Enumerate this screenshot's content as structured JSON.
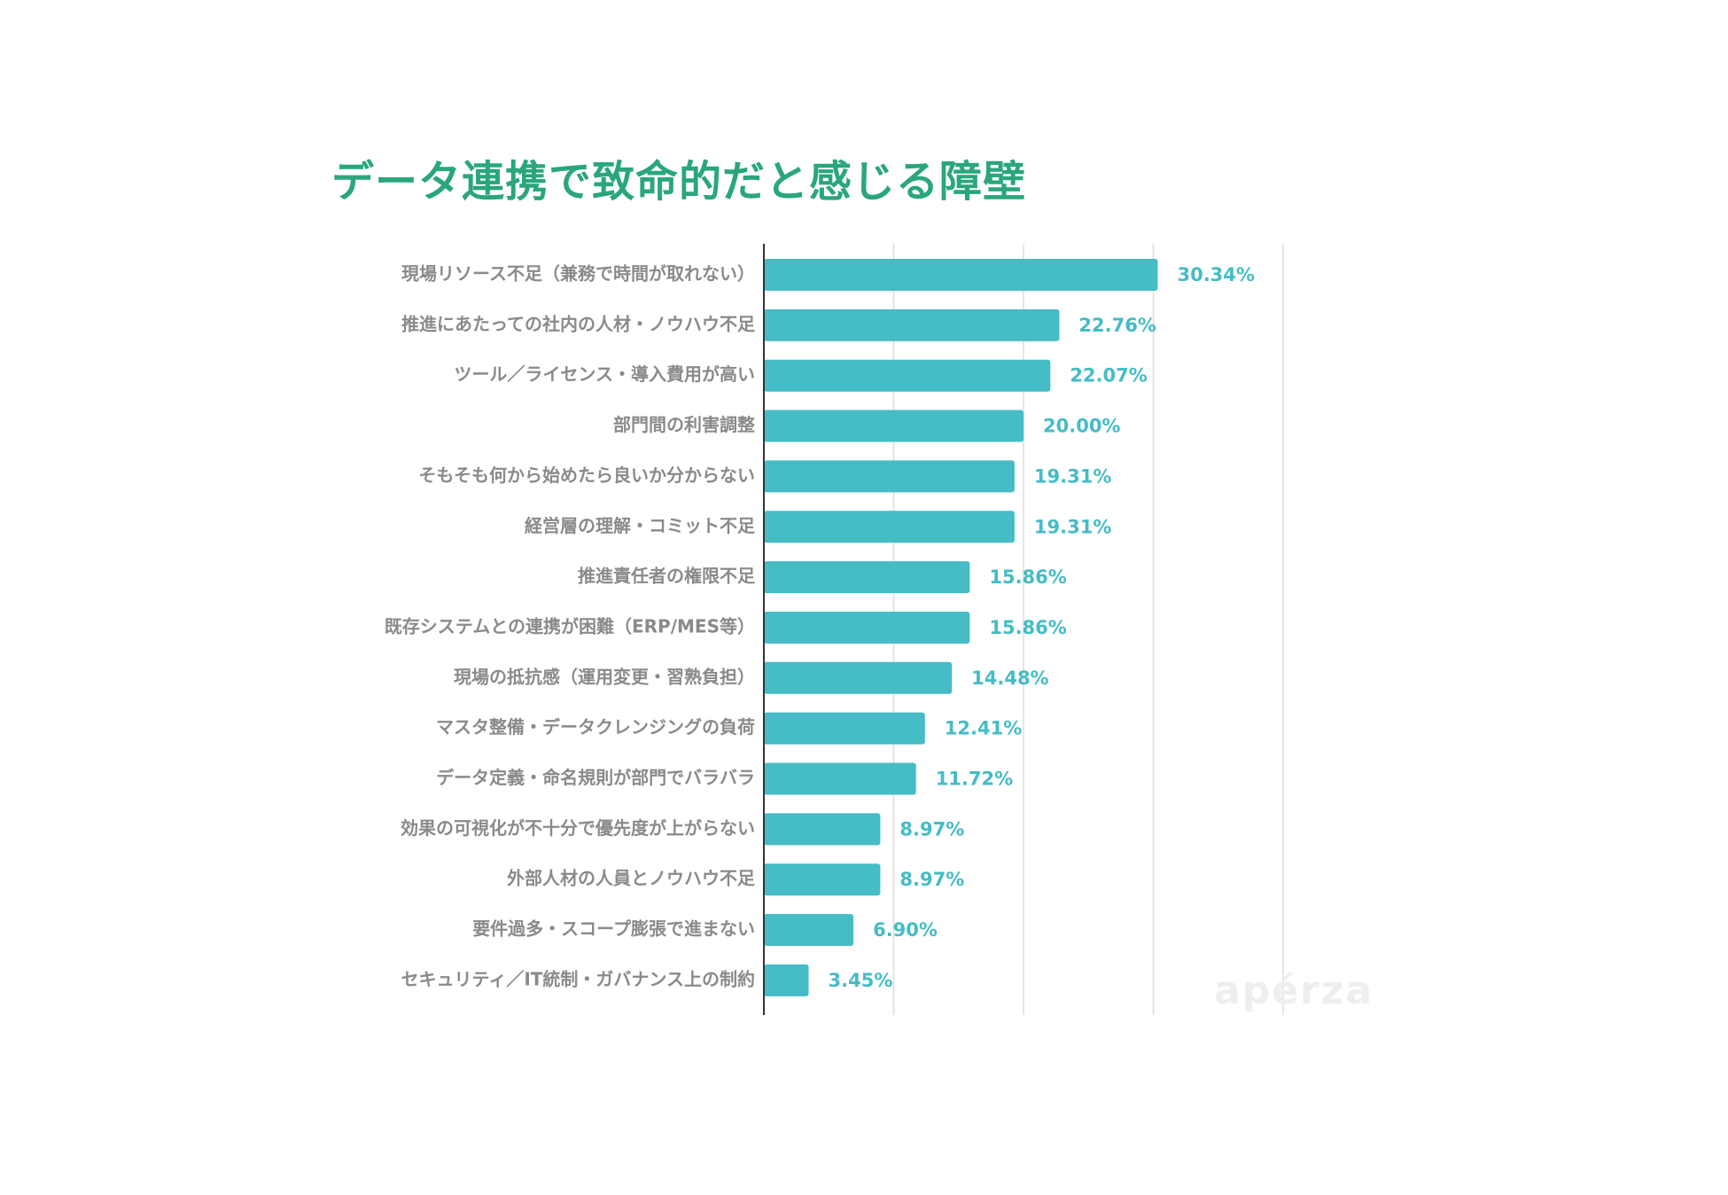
{
  "chart_data": {
    "type": "bar",
    "orientation": "horizontal",
    "title": "データ連携で致命的だと感じる障壁",
    "categories": [
      "現場リソース不足（兼務で時間が取れない）",
      "推進にあたっての社内の人材・ノウハウ不足",
      "ツール／ライセンス・導入費用が高い",
      "部門間の利害調整",
      "そもそも何から始めたら良いか分からない",
      "経営層の理解・コミット不足",
      "推進責任者の権限不足",
      "既存システムとの連携が困難（ERP/MES等）",
      "現場の抵抗感（運用変更・習熟負担）",
      "マスタ整備・データクレンジングの負荷",
      "データ定義・命名規則が部門でバラバラ",
      "効果の可視化が不十分で優先度が上がらない",
      "外部人材の人員とノウハウ不足",
      "要件過多・スコープ膨張で進まない",
      "セキュリティ／IT統制・ガバナンス上の制約"
    ],
    "values": [
      30.34,
      22.76,
      22.07,
      20.0,
      19.31,
      19.31,
      15.86,
      15.86,
      14.48,
      12.41,
      11.72,
      8.97,
      8.97,
      6.9,
      3.45
    ],
    "value_labels": [
      "30.34%",
      "22.76%",
      "22.07%",
      "20.00%",
      "19.31%",
      "19.31%",
      "15.86%",
      "15.86%",
      "14.48%",
      "12.41%",
      "11.72%",
      "8.97%",
      "8.97%",
      "6.90%",
      "3.45%"
    ],
    "xlim": [
      0,
      40
    ],
    "grid": true,
    "bar_color": "#45bcc6",
    "value_label_color": "#45bcc6",
    "title_color": "#2aa67e"
  },
  "watermark": "apérza"
}
